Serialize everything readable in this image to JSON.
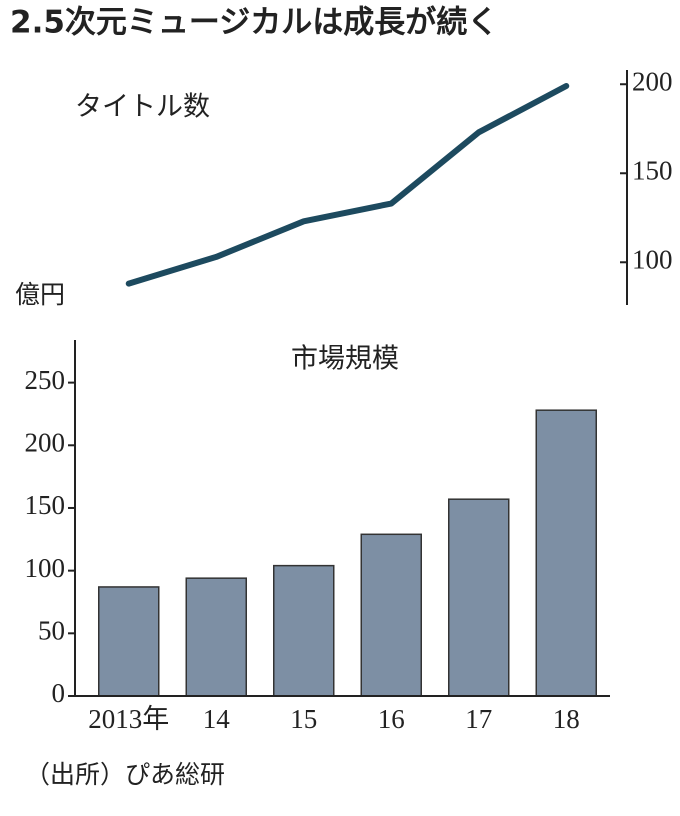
{
  "title": "2.5次元ミュージカルは成長が続く",
  "source": "（出所）ぴあ総研",
  "chart_data": [
    {
      "type": "line",
      "title": "タイトル数",
      "color": "#1d4a5f",
      "values": [
        88,
        103,
        123,
        133,
        173,
        199
      ],
      "ylim": [
        76,
        208
      ],
      "yticks": [
        100,
        150,
        200
      ],
      "axis": "y2"
    },
    {
      "type": "bar",
      "title": "市場規模",
      "ylabel": "億円",
      "color": "#7d8fa4",
      "categories": [
        "2013年",
        "14",
        "15",
        "16",
        "17",
        "18"
      ],
      "values": [
        87,
        94,
        104,
        129,
        157,
        228
      ],
      "ylim": [
        0,
        284
      ],
      "yticks": [
        0,
        50,
        100,
        150,
        200,
        250
      ]
    }
  ]
}
